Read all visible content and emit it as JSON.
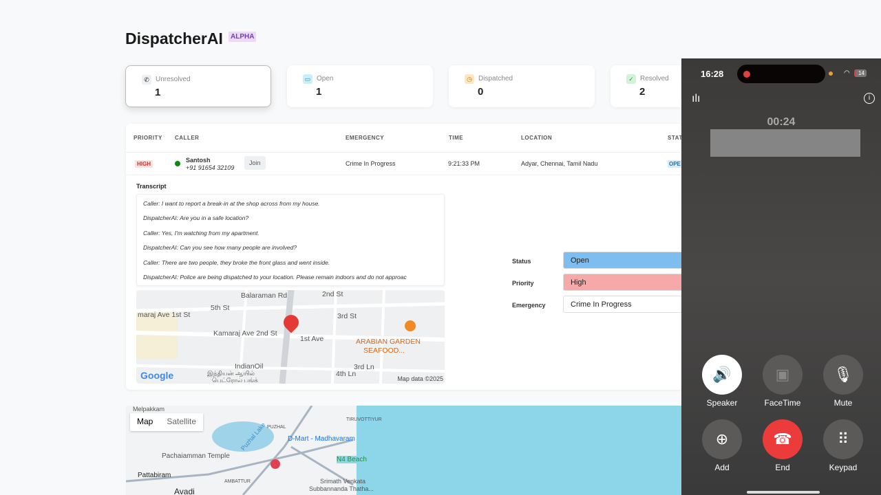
{
  "header": {
    "title": "DispatcherAI",
    "badge": "ALPHA"
  },
  "stats": [
    {
      "label": "Unresolved",
      "value": "1",
      "icon": "phone-icon",
      "color": "#eef0f2"
    },
    {
      "label": "Open",
      "value": "1",
      "icon": "folder-icon",
      "color": "#cdeef7"
    },
    {
      "label": "Dispatched",
      "value": "0",
      "icon": "clock-icon",
      "color": "#fde6c2"
    },
    {
      "label": "Resolved",
      "value": "2",
      "icon": "check-icon",
      "color": "#d3f2d9"
    }
  ],
  "table": {
    "headers": [
      "PRIORITY",
      "CALLER",
      "EMERGENCY",
      "TIME",
      "LOCATION",
      "STAT"
    ],
    "row": {
      "priority": "HIGH",
      "caller_name": "Santosh",
      "caller_phone": "+91 91654 32109",
      "join": "Join",
      "emergency": "Crime In Progress",
      "time": "9:21:33 PM",
      "location": "Adyar, Chennai, Tamil Nadu",
      "status": "OPE"
    }
  },
  "transcript": {
    "title": "Transcript",
    "lines": [
      "Caller: I want to report a break-in at the shop across from my house.",
      "DispatcherAI: Are you in a safe location?",
      "Caller: Yes, I'm watching from my apartment.",
      "DispatcherAI: Can you see how many people are involved?",
      "Caller: There are two people, they broke the front glass and went inside.",
      "DispatcherAI: Police are being dispatched to your location. Please remain indoors and do not approac"
    ]
  },
  "minimap": {
    "labels": [
      "Balaraman Rd",
      "2nd St",
      "5th St",
      "maraj Ave 1st St",
      "3rd St",
      "Kamaraj Ave 2nd St",
      "1st Ave",
      "ARABIAN GARDEN",
      "SEAFOOD...",
      "IndianOil",
      "இந்தியன் ஆயில்",
      "பெட்ரோல் பங்க்",
      "3rd Ln",
      "4th Ln"
    ],
    "logo": "Google",
    "attribution": "Map data ©2025"
  },
  "form": {
    "status_label": "Status",
    "status": "Open",
    "priority_label": "Priority",
    "priority": "High",
    "emergency_label": "Emergency",
    "emergency": "Crime In Progress"
  },
  "bigmap": {
    "tabs": [
      "Map",
      "Satellite"
    ],
    "labels": [
      "Melpakkam",
      "Puzhal Lake",
      "PUZHAL",
      "D-Mart - Madhavaram",
      "TIRUVOTTIYUR",
      "Pachaiamman Temple",
      "N4 Beach",
      "Pattabiram",
      "AMBATTUR",
      "Avadi",
      "Srimath Venkata",
      "Subbannanda Thatha..."
    ]
  },
  "phone": {
    "time": "16:28",
    "battery": "14",
    "timer": "00:24",
    "buttons": [
      {
        "label": "Speaker",
        "icon": "speaker-icon"
      },
      {
        "label": "FaceTime",
        "icon": "facetime-icon"
      },
      {
        "label": "Mute",
        "icon": "mute-icon"
      },
      {
        "label": "Add",
        "icon": "add-person-icon"
      },
      {
        "label": "End",
        "icon": "end-call-icon"
      },
      {
        "label": "Keypad",
        "icon": "keypad-icon"
      }
    ]
  }
}
